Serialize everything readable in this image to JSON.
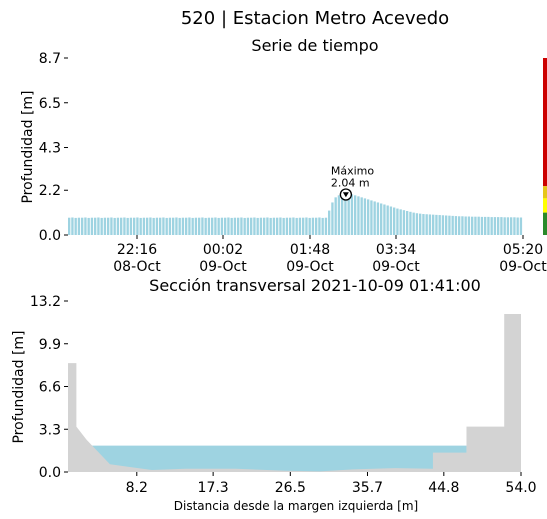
{
  "page": {
    "title": "520 | Estacion Metro Acevedo"
  },
  "chart_data": [
    {
      "type": "bar",
      "title": "Serie de tiempo",
      "ylabel": "Profundidad [m]",
      "xlabel": "",
      "ylim": [
        0,
        8.7
      ],
      "yticks": [
        "0.0",
        "2.2",
        "4.3",
        "6.5",
        "8.7"
      ],
      "xticks": [
        {
          "time": "22:16",
          "date": "08-Oct"
        },
        {
          "time": "00:02",
          "date": "09-Oct"
        },
        {
          "time": "01:48",
          "date": "09-Oct"
        },
        {
          "time": "03:34",
          "date": "09-Oct"
        },
        {
          "time": "05:20",
          "date": "09-Oct"
        }
      ],
      "x_start": "08-Oct 20:50",
      "x_end": "09-Oct 05:20",
      "series": [
        {
          "values": [
            0.85,
            0.86,
            0.84,
            0.85,
            0.85,
            0.86,
            0.84,
            0.85,
            0.85,
            0.86,
            0.84,
            0.85,
            0.85,
            0.86,
            0.84,
            0.85,
            0.85,
            0.86,
            0.84,
            0.85,
            0.85,
            0.86,
            0.84,
            0.85,
            0.85,
            0.86,
            0.84,
            0.85,
            0.85,
            0.86,
            0.84,
            0.85,
            0.85,
            0.86,
            0.84,
            0.85,
            0.85,
            0.86,
            0.84,
            0.85,
            0.85,
            0.86,
            0.84,
            0.85,
            0.85,
            0.86,
            0.84,
            0.85,
            0.85,
            0.86,
            0.84,
            0.85,
            0.85,
            0.86,
            0.84,
            0.85,
            0.85,
            0.86,
            0.84,
            0.85,
            0.85,
            0.86,
            0.84,
            0.85,
            0.85,
            0.86,
            0.84,
            0.85,
            0.85,
            0.86,
            0.84,
            0.85,
            0.85,
            0.86,
            0.84,
            0.85,
            0.85,
            0.86,
            0.84,
            0.85,
            1.2,
            1.6,
            1.85,
            1.95,
            2.0,
            2.04,
            2.02,
            2.0,
            1.95,
            1.9,
            1.85,
            1.8,
            1.75,
            1.7,
            1.65,
            1.6,
            1.55,
            1.5,
            1.45,
            1.4,
            1.35,
            1.3,
            1.26,
            1.22,
            1.18,
            1.14,
            1.1,
            1.07,
            1.05,
            1.03,
            1.02,
            1.01,
            1.0,
            0.99,
            0.98,
            0.97,
            0.96,
            0.95,
            0.94,
            0.93,
            0.92,
            0.92,
            0.91,
            0.91,
            0.9,
            0.9,
            0.9,
            0.89,
            0.89,
            0.89,
            0.88,
            0.88,
            0.88,
            0.88,
            0.87,
            0.87,
            0.87,
            0.87,
            0.86,
            0.86
          ]
        }
      ],
      "annotation": {
        "label": "Máximo",
        "value": "2.04 m",
        "y": 2.04
      },
      "threshold_colors": [
        "#cc0000",
        "#e6c619",
        "#ffff00",
        "#2a8a2a"
      ],
      "thresholds": [
        0.0,
        1.1,
        1.8,
        2.4,
        8.7
      ]
    },
    {
      "type": "area",
      "title": "Sección transversal 2021-10-09 01:41:00",
      "xlabel": "Distancia desde la margen izquierda [m]",
      "ylabel": "Profundidad [m]",
      "xlim": [
        0,
        54.0
      ],
      "ylim": [
        0,
        13.2
      ],
      "xticks": [
        "8.2",
        "17.3",
        "26.5",
        "35.7",
        "44.8",
        "54.0"
      ],
      "yticks": [
        "0.0",
        "3.3",
        "6.6",
        "9.9",
        "13.2"
      ],
      "water_level": 2.04,
      "terrain_x": [
        0,
        1,
        1,
        2.2,
        5,
        10,
        14,
        20,
        26,
        30,
        34,
        39,
        43.5,
        43.5,
        47.5,
        47.5,
        52,
        52,
        54,
        54
      ],
      "terrain_y": [
        8.4,
        8.4,
        3.5,
        2.5,
        0.6,
        0.15,
        0.25,
        0.25,
        0.1,
        0.05,
        0.2,
        0.3,
        0.25,
        1.5,
        1.5,
        3.5,
        3.5,
        12.2,
        12.2,
        0
      ]
    }
  ]
}
